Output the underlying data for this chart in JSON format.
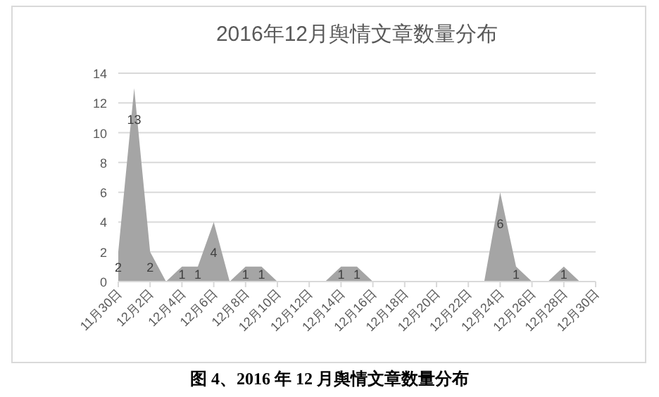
{
  "chart_data": {
    "type": "area",
    "title": "2016年12月舆情文章数量分布",
    "categories": [
      "11月30日",
      null,
      "12月2日",
      null,
      "12月4日",
      null,
      "12月6日",
      null,
      "12月8日",
      null,
      "12月10日",
      null,
      "12月12日",
      null,
      "12月14日",
      null,
      "12月16日",
      null,
      "12月18日",
      null,
      "12月20日",
      null,
      "12月22日",
      null,
      "12月24日",
      null,
      "12月26日",
      null,
      "12月28日",
      null,
      "12月30日"
    ],
    "series": [
      {
        "color": "#a5a5a5",
        "values": [
          2,
          13,
          2,
          0,
          1,
          1,
          4,
          0,
          1,
          1,
          0,
          0,
          0,
          0,
          1,
          1,
          0,
          0,
          0,
          0,
          0,
          0,
          0,
          0,
          6,
          1,
          0,
          0,
          1,
          0,
          0
        ],
        "value_labels": [
          "2",
          "13",
          "2",
          null,
          "1",
          "1",
          "4",
          null,
          "1",
          "1",
          null,
          null,
          null,
          null,
          "1",
          "1",
          null,
          null,
          null,
          null,
          null,
          null,
          null,
          null,
          "6",
          "1",
          null,
          null,
          "1",
          null,
          null
        ]
      }
    ],
    "ylim": [
      0,
      14
    ],
    "yticks": [
      0,
      2,
      4,
      6,
      8,
      10,
      12,
      14
    ],
    "grid": "y",
    "annotations": [
      "图 4、2016 年 12 月舆情文章数量分布"
    ]
  }
}
